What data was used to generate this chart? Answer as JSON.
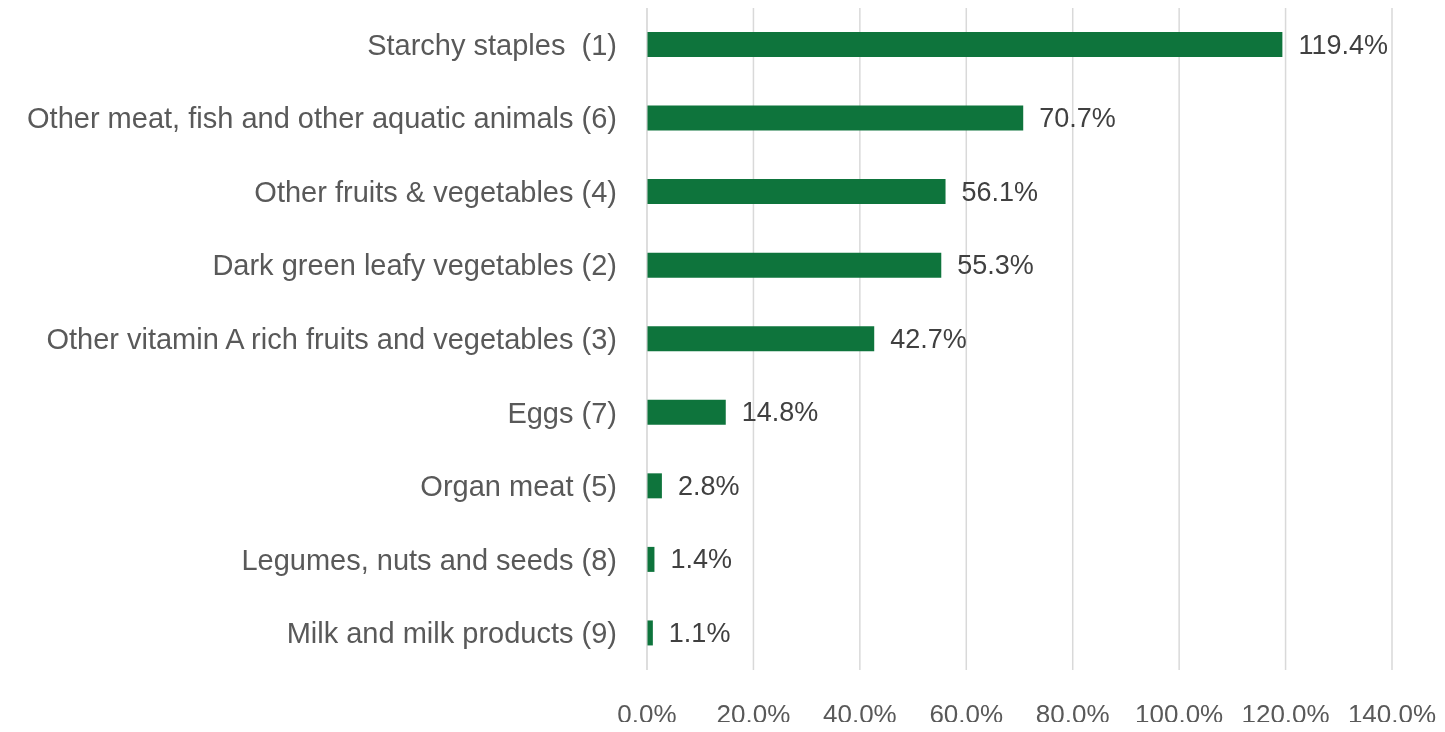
{
  "chart_data": {
    "type": "bar",
    "orientation": "horizontal",
    "categories": [
      "Starchy staples  (1)",
      "Other meat, fish and other aquatic animals (6)",
      "Other fruits & vegetables (4)",
      "Dark green leafy vegetables (2)",
      "Other vitamin A rich fruits and vegetables (3)",
      "Eggs (7)",
      "Organ meat (5)",
      "Legumes, nuts and seeds (8)",
      "Milk and milk products (9)"
    ],
    "values": [
      119.4,
      70.7,
      56.1,
      55.3,
      42.7,
      14.8,
      2.8,
      1.4,
      1.1
    ],
    "value_labels": [
      "119.4%",
      "70.7%",
      "56.1%",
      "55.3%",
      "42.7%",
      "14.8%",
      "2.8%",
      "1.4%",
      "1.1%"
    ],
    "color": "#0e743c",
    "xlim": [
      0,
      140
    ],
    "xticks": [
      {
        "value": 0,
        "label": "0.0%"
      },
      {
        "value": 20,
        "label": "20.0%"
      },
      {
        "value": 40,
        "label": "40.0%"
      },
      {
        "value": 60,
        "label": "60.0%"
      },
      {
        "value": 80,
        "label": "80.0%"
      },
      {
        "value": 100,
        "label": "100.0%"
      },
      {
        "value": 120,
        "label": "120.0%"
      },
      {
        "value": 140,
        "label": "140.0%"
      }
    ],
    "grid": "x"
  }
}
